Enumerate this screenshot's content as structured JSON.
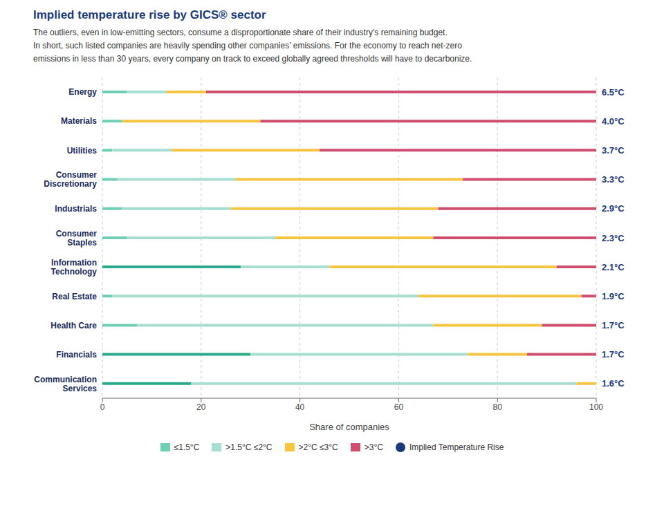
{
  "chart_data": {
    "type": "bar",
    "orientation": "horizontal",
    "stacked": true,
    "title": "Implied temperature rise by GICS® sector",
    "subtitle": "The outliers, even in low-emitting sectors, consume a disproportionate share of their industry’s remaining budget.\nIn short, such listed companies are heavily spending other companies’ emissions. For the economy to reach net-zero\nemissions in less than 30 years, every company on track to exceed globally agreed thresholds will have to decarbonize.",
    "x_label": "Share of companies",
    "categories": [
      "Energy",
      "Materials",
      "Utilities",
      "Consumer\nDiscretionary",
      "Industrials",
      "Consumer\nStaples",
      "Information\nTechnology",
      "Real Estate",
      "Health Care",
      "Financials",
      "Communication\nServices"
    ],
    "series": [
      {
        "name": "≤1.5°C",
        "color": "#6ecfb5",
        "colors": [
          "#6ecfb5",
          "#6ecfb5",
          "#6ecfb5",
          "#6ecfb5",
          "#6ecfb5",
          "#6ecfb5",
          "#2aaa8a",
          "#6ecfb5",
          "#6ecfb5",
          "#2aaa8a",
          "#2aaa8a"
        ],
        "values": [
          5,
          4,
          2,
          3,
          4,
          5,
          28,
          2,
          7,
          30,
          18
        ]
      },
      {
        "name": ">1.5°C ≤2°C",
        "color": "#a8ddd1",
        "values": [
          8,
          0,
          12,
          24,
          22,
          30,
          18,
          62,
          60,
          44,
          78
        ]
      },
      {
        "name": ">2°C ≤3°C",
        "color": "#f5c542",
        "values": [
          8,
          28,
          30,
          46,
          42,
          32,
          46,
          33,
          22,
          12,
          4
        ]
      },
      {
        "name": ">3°C",
        "color": "#cf4d6f",
        "values": [
          79,
          68,
          56,
          27,
          32,
          33,
          8,
          3,
          11,
          14,
          0
        ]
      },
      {
        "name": "Implied Temperature Rise",
        "type": "text",
        "marker": "circle",
        "color": "#1a3a7c",
        "values": [
          6.5,
          4.0,
          3.7,
          3.3,
          2.9,
          2.3,
          2.1,
          1.9,
          1.7,
          1.7,
          1.6
        ],
        "value_labels": [
          "6.5°C",
          "4.0°C",
          "3.7°C",
          "3.3°C",
          "2.9°C",
          "2.3°C",
          "2.1°C",
          "1.9°C",
          "1.7°C",
          "1.7°C",
          "1.6°C"
        ]
      }
    ],
    "xlim": [
      0,
      100
    ],
    "xticks": [
      0,
      20,
      40,
      60,
      80,
      100
    ],
    "grid": true,
    "legend": "bottom"
  }
}
